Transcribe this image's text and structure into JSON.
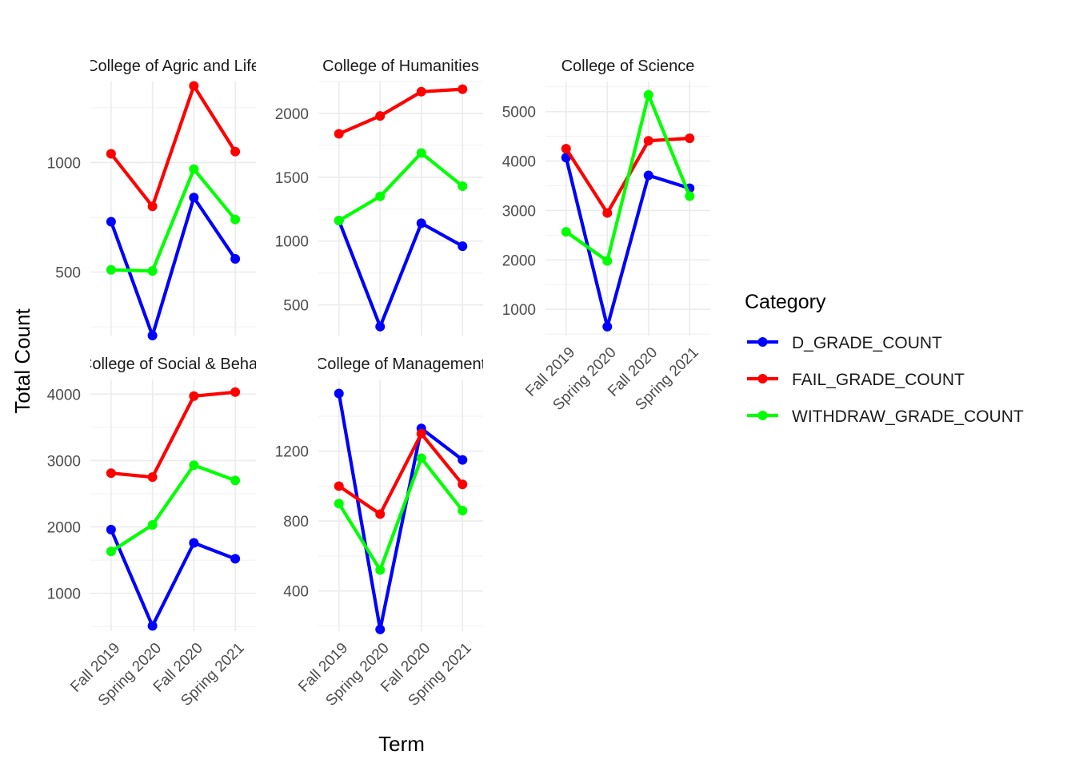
{
  "chart_data": {
    "type": "line",
    "xlabel": "Term",
    "ylabel": "Total Count",
    "x": [
      "Fall 2019",
      "Spring 2020",
      "Fall 2020",
      "Spring 2021"
    ],
    "legend": {
      "title": "Category",
      "placement": "right",
      "entries": [
        {
          "name": "D_GRADE_COUNT",
          "color": "#0000FF"
        },
        {
          "name": "FAIL_GRADE_COUNT",
          "color": "#FF0000"
        },
        {
          "name": "WITHDRAW_GRADE_COUNT",
          "color": "#00FF00"
        }
      ]
    },
    "grid": true,
    "facets": [
      {
        "title": "College of Agric and Life",
        "ylim": [
          210,
          1370
        ],
        "yticks": [
          500,
          1000
        ],
        "series": [
          {
            "name": "D_GRADE_COUNT",
            "values": [
              730,
              210,
              840,
              560
            ]
          },
          {
            "name": "FAIL_GRADE_COUNT",
            "values": [
              1040,
              800,
              1350,
              1050
            ]
          },
          {
            "name": "WITHDRAW_GRADE_COUNT",
            "values": [
              510,
              505,
              970,
              740
            ]
          }
        ]
      },
      {
        "title": "College of Humanities",
        "ylim": [
          260,
          2250
        ],
        "yticks": [
          500,
          1000,
          1500,
          2000
        ],
        "series": [
          {
            "name": "D_GRADE_COUNT",
            "values": [
              1160,
              330,
              1140,
              960
            ]
          },
          {
            "name": "FAIL_GRADE_COUNT",
            "values": [
              1840,
              1980,
              2170,
              2190
            ]
          },
          {
            "name": "WITHDRAW_GRADE_COUNT",
            "values": [
              1160,
              1350,
              1690,
              1430
            ]
          }
        ]
      },
      {
        "title": "College of Science",
        "ylim": [
          470,
          5610
        ],
        "yticks": [
          1000,
          2000,
          3000,
          4000,
          5000
        ],
        "series": [
          {
            "name": "D_GRADE_COUNT",
            "values": [
              4070,
              650,
              3710,
              3450
            ]
          },
          {
            "name": "FAIL_GRADE_COUNT",
            "values": [
              4250,
              2950,
              4410,
              4460
            ]
          },
          {
            "name": "WITHDRAW_GRADE_COUNT",
            "values": [
              2570,
              1980,
              5340,
              3290
            ]
          }
        ]
      },
      {
        "title": "College of Social & Behav",
        "ylim": [
          430,
          4220
        ],
        "yticks": [
          1000,
          2000,
          3000,
          4000
        ],
        "series": [
          {
            "name": "D_GRADE_COUNT",
            "values": [
              1960,
              510,
              1760,
              1520
            ]
          },
          {
            "name": "FAIL_GRADE_COUNT",
            "values": [
              2810,
              2750,
              3970,
              4030
            ]
          },
          {
            "name": "WITHDRAW_GRADE_COUNT",
            "values": [
              1630,
              2030,
              2930,
              2700
            ]
          }
        ]
      },
      {
        "title": "College of Management",
        "ylim": [
          170,
          1610
        ],
        "yticks": [
          400,
          800,
          1200
        ],
        "series": [
          {
            "name": "D_GRADE_COUNT",
            "values": [
              1530,
              180,
              1330,
              1150
            ]
          },
          {
            "name": "FAIL_GRADE_COUNT",
            "values": [
              1000,
              840,
              1300,
              1010
            ]
          },
          {
            "name": "WITHDRAW_GRADE_COUNT",
            "values": [
              900,
              520,
              1160,
              860
            ]
          }
        ]
      }
    ]
  }
}
